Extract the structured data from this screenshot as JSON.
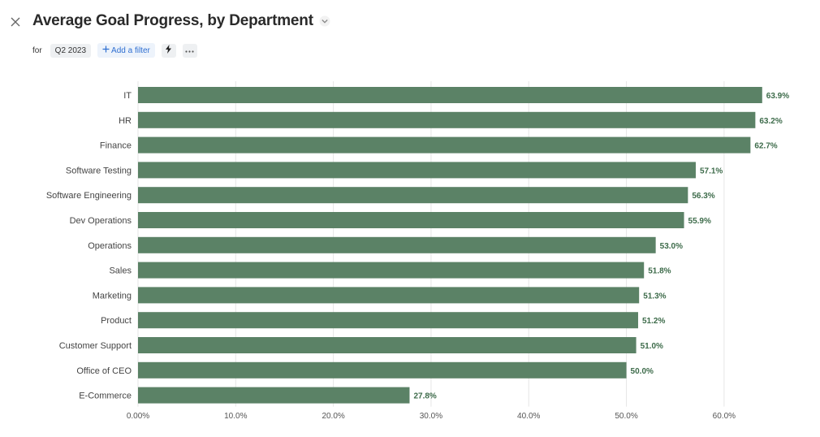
{
  "header": {
    "title": "Average Goal Progress, by Department",
    "for_label": "for",
    "period": "Q2 2023",
    "add_filter_label": "Add a filter"
  },
  "icons": {
    "close": "close-icon",
    "title_menu": "chevron-down-icon",
    "add_filter": "plus-icon",
    "quick_action": "lightning-icon",
    "more": "more-icon"
  },
  "colors": {
    "bar": "#5b8266",
    "value_label": "#3d6b4a",
    "grid": "#e6e6e6",
    "link": "#2f6fd1"
  },
  "chart_data": {
    "type": "bar",
    "orientation": "horizontal",
    "title": "Average Goal Progress, by Department",
    "categories": [
      "IT",
      "HR",
      "Finance",
      "Software Testing",
      "Software Engineering",
      "Dev Operations",
      "Operations",
      "Sales",
      "Marketing",
      "Product",
      "Customer Support",
      "Office of CEO",
      "E-Commerce"
    ],
    "values": [
      63.9,
      63.2,
      62.7,
      57.1,
      56.3,
      55.9,
      53.0,
      51.8,
      51.3,
      51.2,
      51.0,
      50.0,
      27.8
    ],
    "value_labels": [
      "63.9%",
      "63.2%",
      "62.7%",
      "57.1%",
      "56.3%",
      "55.9%",
      "53.0%",
      "51.8%",
      "51.3%",
      "51.2%",
      "51.0%",
      "50.0%",
      "27.8%"
    ],
    "xlim": [
      0,
      64.5
    ],
    "xticks": [
      0,
      10,
      20,
      30,
      40,
      50,
      60
    ],
    "xtick_labels": [
      "0.00%",
      "10.0%",
      "20.0%",
      "30.0%",
      "40.0%",
      "50.0%",
      "60.0%"
    ],
    "xlabel": "",
    "ylabel": "",
    "grid": true
  }
}
